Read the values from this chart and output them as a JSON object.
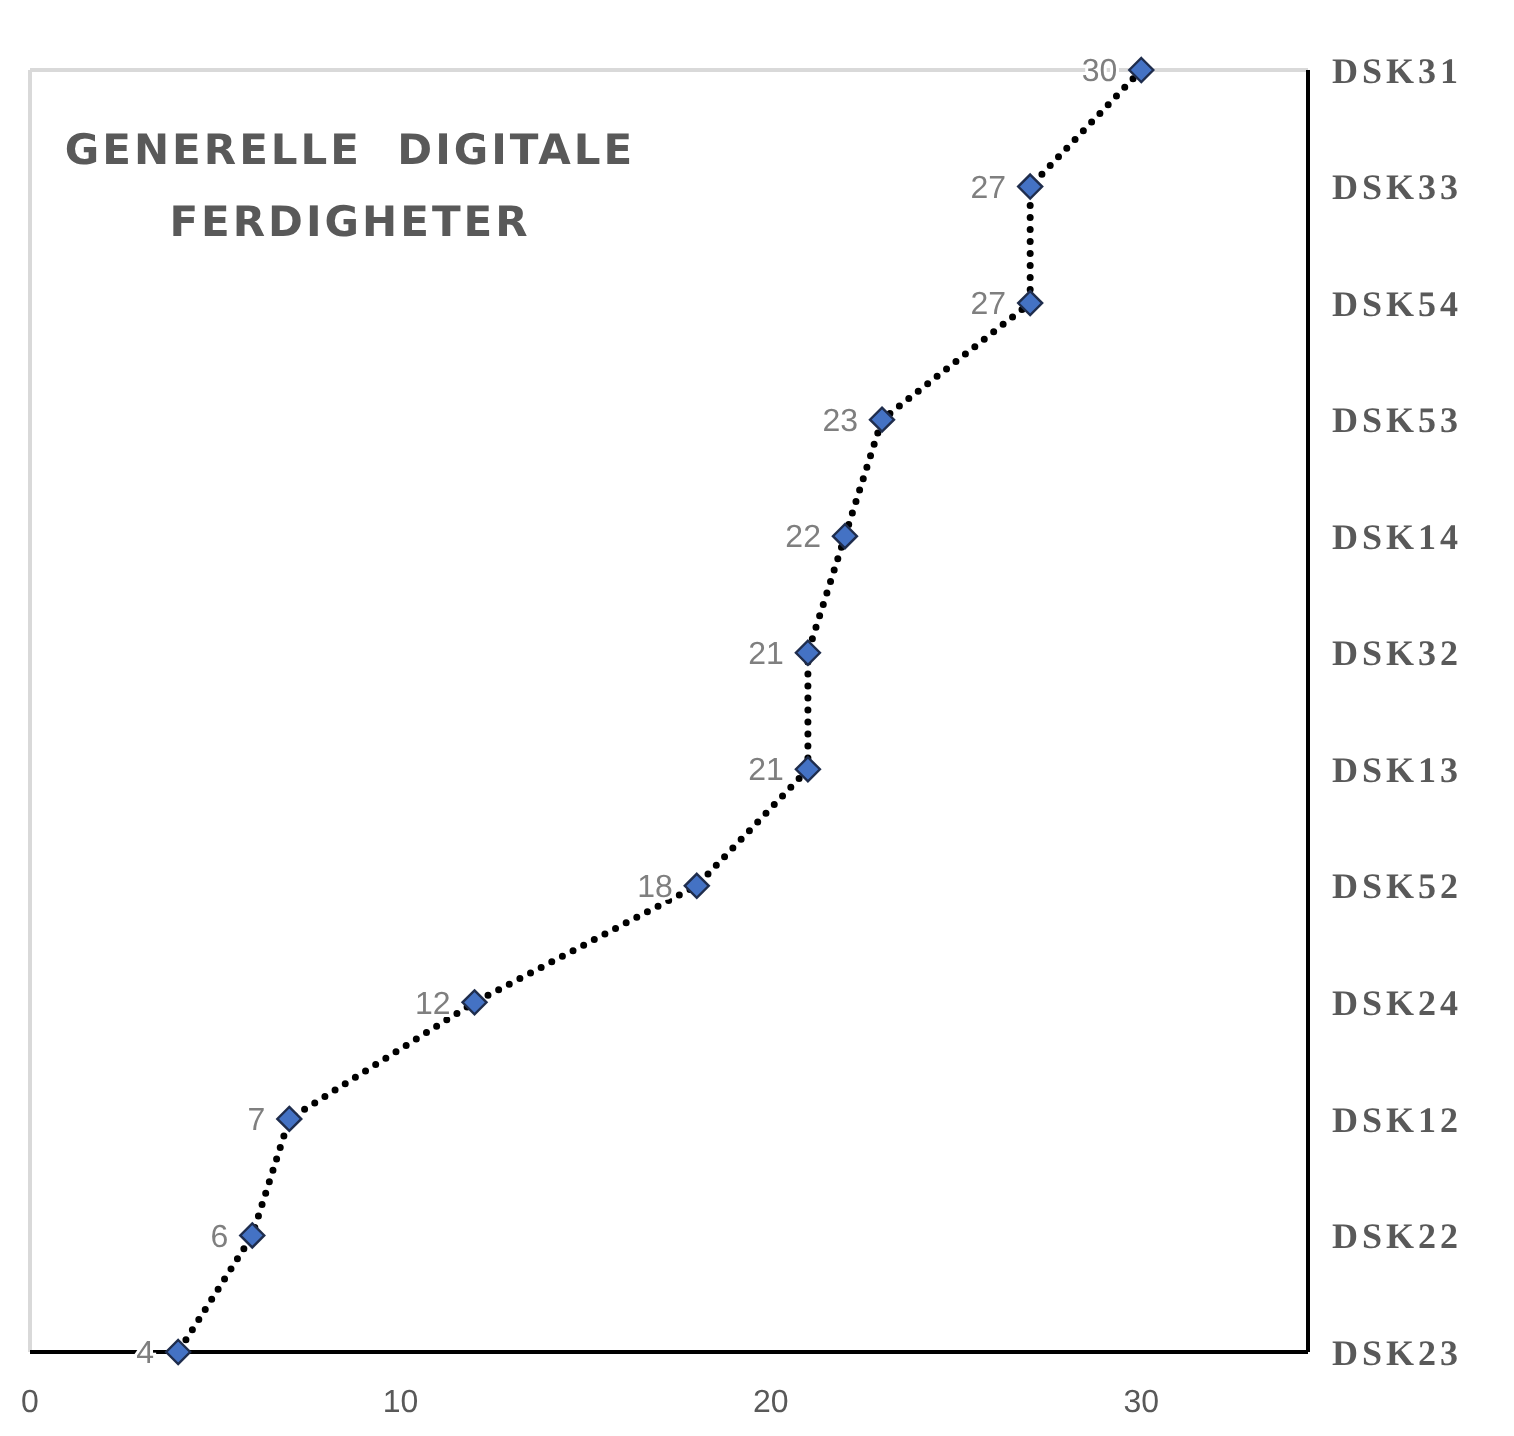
{
  "chart_data": {
    "type": "line",
    "orientation": "horizontal",
    "title": "GENERELLE  DIGITALE\nFERDIGHETER",
    "categories": [
      "DSK31",
      "DSK33",
      "DSK54",
      "DSK53",
      "DSK14",
      "DSK32",
      "DSK13",
      "DSK52",
      "DSK24",
      "DSK12",
      "DSK22",
      "DSK23"
    ],
    "series": [
      {
        "color": "#4472c4",
        "values": [
          30,
          27,
          27,
          23,
          22,
          21,
          21,
          18,
          12,
          7,
          6,
          4
        ]
      }
    ],
    "xlim": [
      0,
      34.5
    ],
    "xticks": [
      0,
      10,
      20,
      30
    ],
    "marker": "diamond",
    "line_style": "dotted",
    "data_labels": true,
    "grid": false
  }
}
